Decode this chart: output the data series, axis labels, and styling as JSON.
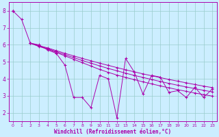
{
  "background_color": "#cceeff",
  "line_color": "#aa00aa",
  "grid_color": "#99cccc",
  "xlabel": "Windchill (Refroidissement éolien,°C)",
  "ylim": [
    1.5,
    8.5
  ],
  "xlim": [
    -0.5,
    23.5
  ],
  "yticks": [
    2,
    3,
    4,
    5,
    6,
    7,
    8
  ],
  "xticks": [
    0,
    1,
    2,
    3,
    4,
    5,
    6,
    7,
    8,
    9,
    10,
    11,
    12,
    13,
    14,
    15,
    16,
    17,
    18,
    19,
    20,
    21,
    22,
    23
  ],
  "series": [
    [
      8.0,
      7.5,
      6.1,
      6.0,
      5.7,
      5.5,
      4.8,
      2.9,
      2.9,
      2.3,
      4.2,
      4.0,
      1.7,
      5.2,
      4.4,
      3.1,
      4.2,
      4.1,
      3.2,
      3.3,
      2.9,
      3.5,
      2.9,
      3.4
    ],
    [
      8.0,
      null,
      6.1,
      5.9,
      5.75,
      5.55,
      5.35,
      5.15,
      4.95,
      4.75,
      4.55,
      4.38,
      4.22,
      4.08,
      3.95,
      3.82,
      3.7,
      3.58,
      3.47,
      3.36,
      3.26,
      3.16,
      3.07,
      2.98
    ],
    [
      8.0,
      null,
      6.1,
      5.93,
      5.78,
      5.6,
      5.42,
      5.25,
      5.08,
      4.92,
      4.76,
      4.61,
      4.47,
      4.33,
      4.2,
      4.08,
      3.96,
      3.84,
      3.73,
      3.62,
      3.52,
      3.42,
      3.32,
      3.23
    ],
    [
      8.0,
      null,
      6.1,
      5.95,
      5.82,
      5.66,
      5.5,
      5.35,
      5.2,
      5.06,
      4.92,
      4.79,
      4.66,
      4.53,
      4.41,
      4.29,
      4.18,
      4.07,
      3.96,
      3.86,
      3.76,
      3.66,
      3.57,
      3.48
    ]
  ]
}
